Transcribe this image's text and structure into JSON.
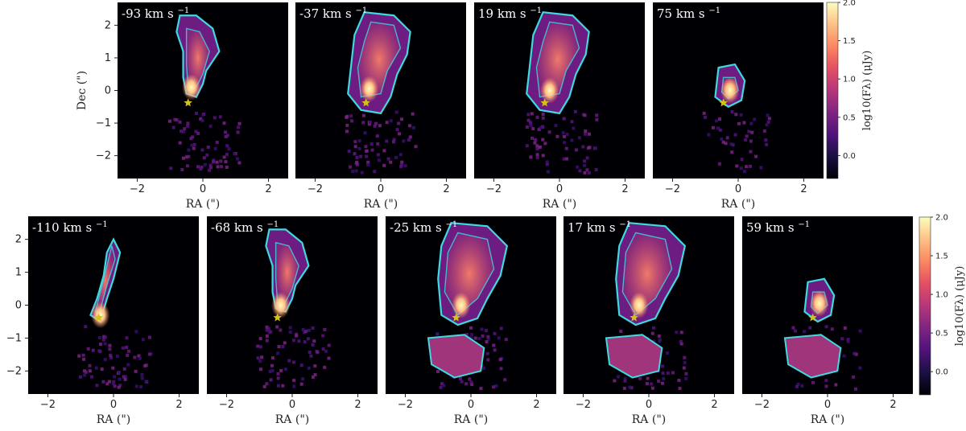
{
  "chart_data": {
    "type": "heatmap",
    "colormap": "magma",
    "colorbar_label": "log10(Fλ)  (μJy)",
    "colorbar_range": [
      -0.3,
      2.0
    ],
    "colorbar_ticks": [
      "2.0",
      "1.5",
      "1.0",
      "0.5",
      "0.0"
    ],
    "contour_color": "#3fd9e0",
    "marker": {
      "symbol": "star",
      "color": "#d4c21a",
      "x": -0.45,
      "y": -0.38
    },
    "xlabel": "RA (\")",
    "ylabel": "Dec (\")",
    "xlim": [
      -2.6,
      2.6
    ],
    "ylim": [
      -2.7,
      2.7
    ],
    "xticks": [
      "−2",
      "0",
      "2"
    ],
    "yticks": [
      "2",
      "1",
      "0",
      "−1",
      "−2"
    ],
    "rows": [
      {
        "panels": [
          {
            "velocity": "-93",
            "unit": "km s",
            "exponent": "−1",
            "peak_x": -0.35,
            "peak_y": 0.1,
            "extent": "narrow-north"
          },
          {
            "velocity": "-37",
            "unit": "km s",
            "exponent": "−1",
            "peak_x": -0.35,
            "peak_y": 0.05,
            "extent": "broad-north"
          },
          {
            "velocity": "19",
            "unit": "km s",
            "exponent": "−1",
            "peak_x": -0.3,
            "peak_y": 0.0,
            "extent": "broad-north"
          },
          {
            "velocity": "75",
            "unit": "km s",
            "exponent": "−1",
            "peak_x": -0.25,
            "peak_y": 0.0,
            "extent": "compact"
          }
        ]
      },
      {
        "panels": [
          {
            "velocity": "-110",
            "unit": "km s",
            "exponent": "−1",
            "peak_x": -0.4,
            "peak_y": -0.3,
            "extent": "filament"
          },
          {
            "velocity": "-68",
            "unit": "km s",
            "exponent": "−1",
            "peak_x": -0.35,
            "peak_y": 0.0,
            "extent": "narrow-north"
          },
          {
            "velocity": "-25",
            "unit": "km s",
            "exponent": "−1",
            "peak_x": -0.3,
            "peak_y": 0.0,
            "extent": "broad"
          },
          {
            "velocity": "17",
            "unit": "km s",
            "exponent": "−1",
            "peak_x": -0.3,
            "peak_y": 0.0,
            "extent": "broad"
          },
          {
            "velocity": "59",
            "unit": "km s",
            "exponent": "−1",
            "peak_x": -0.25,
            "peak_y": 0.05,
            "extent": "compact"
          }
        ]
      }
    ]
  }
}
